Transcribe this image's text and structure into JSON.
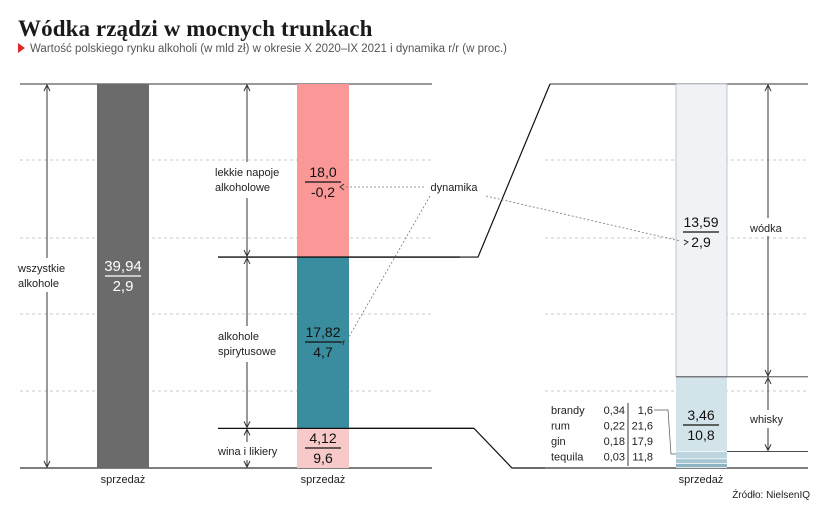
{
  "header": {
    "title": "Wódka rządzi w mocnych trunkach",
    "subtitle": "Wartość polskiego rynku alkoholi (w mld zł) w okresie X 2020–IX 2021 i dynamika r/r (w proc.)"
  },
  "chart_data": {
    "type": "bar",
    "value_unit": "mld zł",
    "dynamics_unit": "proc. r/r",
    "dynamics_label": "dynamika",
    "source": "Źródło: NielsenIQ",
    "bars": [
      {
        "xlabel": "sprzedaż",
        "segments": [
          {
            "label": "wszystkie alkohole",
            "value": "39,94",
            "dynamics": "2,9",
            "color": "#6b6b6b"
          }
        ]
      },
      {
        "xlabel": "sprzedaż",
        "segments": [
          {
            "label": "wina i likiery",
            "value": "4,12",
            "dynamics": "9,6",
            "color": "#f7c9c9"
          },
          {
            "label": "alkohole spirytusowe",
            "value": "17,82",
            "dynamics": "4,7",
            "color": "#3a8d9e"
          },
          {
            "label": "lekkie napoje alkoholowe",
            "value": "18,0",
            "dynamics": "-0,2",
            "color": "#fa9898"
          }
        ]
      },
      {
        "xlabel": "sprzedaż",
        "segments": [
          {
            "label": "tequila",
            "value": "0,03",
            "dynamics": "11,8",
            "color": "#6d98a8"
          },
          {
            "label": "gin",
            "value": "0,18",
            "dynamics": "17,9",
            "color": "#8fb4c2"
          },
          {
            "label": "rum",
            "value": "0,22",
            "dynamics": "21,6",
            "color": "#a8c6d2"
          },
          {
            "label": "brandy",
            "value": "0,34",
            "dynamics": "1,6",
            "color": "#bcd4dd"
          },
          {
            "label": "whisky",
            "value": "3,46",
            "dynamics": "10,8",
            "color": "#d3e3ea"
          },
          {
            "label": "wódka",
            "value": "13,59",
            "dynamics": "2,9",
            "color": "#f1f2f6"
          }
        ]
      }
    ]
  }
}
